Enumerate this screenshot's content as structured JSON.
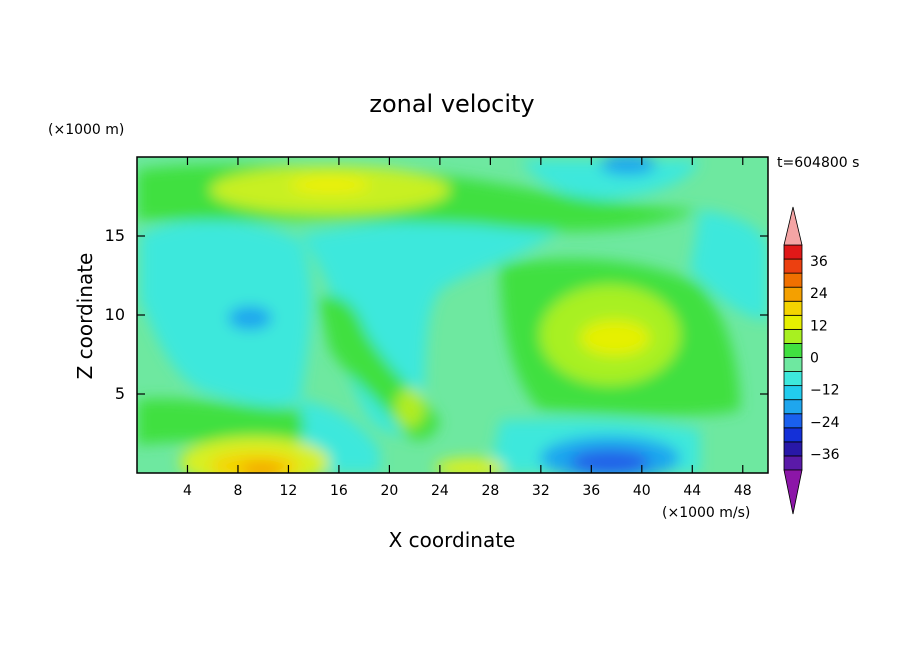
{
  "chart_data": {
    "type": "heatmap",
    "title": "zonal velocity",
    "xlabel": "X coordinate",
    "ylabel": "Z coordinate",
    "y_unit": "(×1000 m)",
    "x_unit": "(×1000 m/s)",
    "time_label": "t=604800 s",
    "xlim": [
      0,
      50
    ],
    "ylim": [
      0,
      20
    ],
    "xticks": [
      4,
      8,
      12,
      16,
      20,
      24,
      28,
      32,
      36,
      40,
      44,
      48
    ],
    "yticks": [
      5,
      10,
      15
    ],
    "colorbar": {
      "ticks": [
        36,
        24,
        12,
        0,
        -12,
        -24,
        -36
      ],
      "range": [
        -42,
        42
      ],
      "step": 6,
      "overflow_high_color": "#f4a4a4",
      "overflow_low_color": "#8c16a8"
    },
    "field_features": [
      {
        "x": 18,
        "z": 18.3,
        "u": 12
      },
      {
        "x": 10,
        "z": 0.5,
        "u": 24
      },
      {
        "x": 9,
        "z": 2.2,
        "u": 12
      },
      {
        "x": 38,
        "z": 8.5,
        "u": 12
      },
      {
        "x": 21,
        "z": 4,
        "u": 10
      },
      {
        "x": 38,
        "z": 0.8,
        "u": -24
      },
      {
        "x": 10,
        "z": 10,
        "u": -16
      },
      {
        "x": 38,
        "z": 19.5,
        "u": -18
      }
    ]
  }
}
